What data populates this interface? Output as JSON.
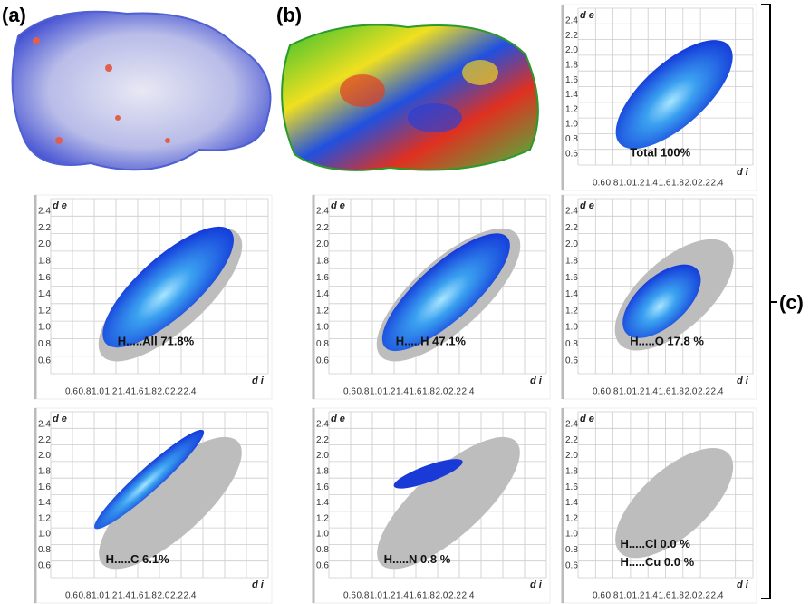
{
  "figure": {
    "labels": {
      "a": "(a)",
      "b": "(b)",
      "c": "(c)"
    },
    "axis": {
      "y_label": "d e",
      "x_label": "d i",
      "yticks": [
        "2.4",
        "2.2",
        "2.0",
        "1.8",
        "1.6",
        "1.4",
        "1.2",
        "1.0",
        "0.8",
        "0.6"
      ],
      "xticks": [
        "0.6",
        "0.8",
        "1.0",
        "1.2",
        "1.4",
        "1.6",
        "1.8",
        "2.0",
        "2.2",
        "2.4"
      ]
    },
    "plots": [
      {
        "caption": [
          "Total 100%"
        ]
      },
      {
        "caption": [
          "H.....All  71.8%"
        ]
      },
      {
        "caption": [
          "H.....H  47.1%"
        ]
      },
      {
        "caption": [
          "H.....O 17.8 %"
        ]
      },
      {
        "caption": [
          "H.....C   6.1%"
        ]
      },
      {
        "caption": [
          "H.....N   0.8 %"
        ]
      },
      {
        "caption": [
          "H.....Cl    0.0 %",
          "H.....Cu    0.0 %"
        ]
      }
    ]
  }
}
